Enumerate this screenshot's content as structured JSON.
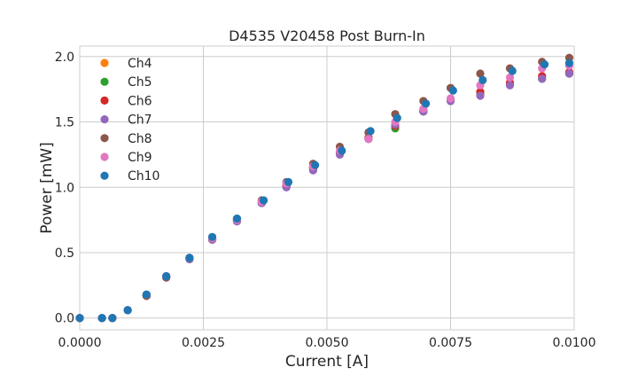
{
  "chart_data": {
    "type": "scatter",
    "title": "D4535 V20458 Post Burn-In",
    "xlabel": "Current [A]",
    "ylabel": "Power [mW]",
    "xlim": [
      0,
      0.01
    ],
    "ylim": [
      -0.09,
      2.08
    ],
    "xticks": [
      0,
      0.0025,
      0.005,
      0.0075,
      0.01
    ],
    "xtick_labels": [
      "0.0000",
      "0.0025",
      "0.0050",
      "0.0075",
      "0.0100"
    ],
    "yticks": [
      0,
      0.5,
      1.0,
      1.5,
      2.0
    ],
    "ytick_labels": [
      "0.0",
      "0.5",
      "1.0",
      "1.5",
      "2.0"
    ],
    "grid": true,
    "legend_position": "top-left",
    "series": [
      {
        "name": "Ch4",
        "color": "#ff7f0e",
        "x": [
          0,
          0.00045,
          0.00066,
          0.00097,
          0.00135,
          0.00175,
          0.00222,
          0.00268,
          0.00318,
          0.00368,
          0.00418,
          0.00472,
          0.00526,
          0.00584,
          0.00638,
          0.00695,
          0.0075,
          0.0081,
          0.0087,
          0.00935,
          0.0099
        ],
        "y": [
          0,
          0,
          0,
          0.06,
          0.17,
          0.32,
          0.46,
          0.6,
          0.75,
          0.89,
          1.02,
          1.15,
          1.27,
          1.38,
          1.47,
          1.58,
          1.67,
          1.71,
          1.79,
          1.84,
          1.88
        ]
      },
      {
        "name": "Ch5",
        "color": "#2ca02c",
        "x": [
          0,
          0.00045,
          0.00066,
          0.00097,
          0.00135,
          0.00175,
          0.00222,
          0.00268,
          0.00318,
          0.00368,
          0.00418,
          0.00472,
          0.00526,
          0.00584,
          0.00638,
          0.00695,
          0.0075,
          0.0081,
          0.0087,
          0.00935,
          0.0099
        ],
        "y": [
          0,
          0,
          0,
          0.06,
          0.17,
          0.32,
          0.45,
          0.6,
          0.74,
          0.88,
          1.01,
          1.14,
          1.26,
          1.37,
          1.45,
          1.58,
          1.66,
          1.71,
          1.79,
          1.83,
          1.87
        ]
      },
      {
        "name": "Ch6",
        "color": "#d62728",
        "x": [
          0,
          0.00045,
          0.00066,
          0.00097,
          0.00135,
          0.00175,
          0.00222,
          0.00268,
          0.00318,
          0.00368,
          0.00418,
          0.00472,
          0.00526,
          0.00584,
          0.00638,
          0.00695,
          0.0075,
          0.0081,
          0.0087,
          0.00935,
          0.0099
        ],
        "y": [
          0,
          0,
          0,
          0.06,
          0.17,
          0.32,
          0.46,
          0.6,
          0.75,
          0.88,
          1.01,
          1.15,
          1.27,
          1.38,
          1.47,
          1.59,
          1.67,
          1.73,
          1.8,
          1.85,
          1.88
        ]
      },
      {
        "name": "Ch7",
        "color": "#9467bd",
        "x": [
          0,
          0.00045,
          0.00066,
          0.00097,
          0.00135,
          0.00175,
          0.00222,
          0.00268,
          0.00318,
          0.00368,
          0.00418,
          0.00472,
          0.00526,
          0.00584,
          0.00638,
          0.00695,
          0.0075,
          0.0081,
          0.0087,
          0.00935,
          0.0099
        ],
        "y": [
          0,
          0,
          0,
          0.06,
          0.17,
          0.31,
          0.45,
          0.6,
          0.74,
          0.88,
          1.0,
          1.13,
          1.25,
          1.37,
          1.48,
          1.58,
          1.66,
          1.7,
          1.78,
          1.83,
          1.87
        ]
      },
      {
        "name": "Ch8",
        "color": "#8c564b",
        "x": [
          0,
          0.00045,
          0.00066,
          0.00097,
          0.00135,
          0.00175,
          0.00222,
          0.00268,
          0.00318,
          0.00368,
          0.00418,
          0.00472,
          0.00526,
          0.00584,
          0.00638,
          0.00695,
          0.0075,
          0.0081,
          0.0087,
          0.00935,
          0.0099
        ],
        "y": [
          0,
          0,
          0,
          0.06,
          0.17,
          0.31,
          0.46,
          0.61,
          0.76,
          0.9,
          1.04,
          1.18,
          1.31,
          1.42,
          1.56,
          1.66,
          1.76,
          1.87,
          1.91,
          1.96,
          1.99
        ]
      },
      {
        "name": "Ch9",
        "color": "#e377c2",
        "x": [
          0,
          0.00045,
          0.00066,
          0.00097,
          0.00135,
          0.00175,
          0.00222,
          0.00268,
          0.00318,
          0.00368,
          0.00418,
          0.00472,
          0.00526,
          0.00584,
          0.00638,
          0.00695,
          0.0075,
          0.0081,
          0.0087,
          0.00935,
          0.0099
        ],
        "y": [
          0,
          0,
          0,
          0.06,
          0.18,
          0.32,
          0.46,
          0.61,
          0.75,
          0.89,
          1.03,
          1.16,
          1.28,
          1.37,
          1.5,
          1.6,
          1.68,
          1.78,
          1.84,
          1.91,
          1.93
        ]
      },
      {
        "name": "Ch10",
        "color": "#1f77b4",
        "x": [
          0,
          0.00045,
          0.00066,
          0.00097,
          0.00135,
          0.00175,
          0.00222,
          0.00268,
          0.00318,
          0.00372,
          0.00422,
          0.00476,
          0.0053,
          0.00588,
          0.00642,
          0.007,
          0.00755,
          0.00815,
          0.00875,
          0.0094,
          0.0099
        ],
        "y": [
          0,
          0,
          0,
          0.06,
          0.18,
          0.32,
          0.46,
          0.62,
          0.76,
          0.9,
          1.04,
          1.17,
          1.28,
          1.43,
          1.53,
          1.64,
          1.74,
          1.82,
          1.89,
          1.94,
          1.95
        ]
      }
    ]
  }
}
